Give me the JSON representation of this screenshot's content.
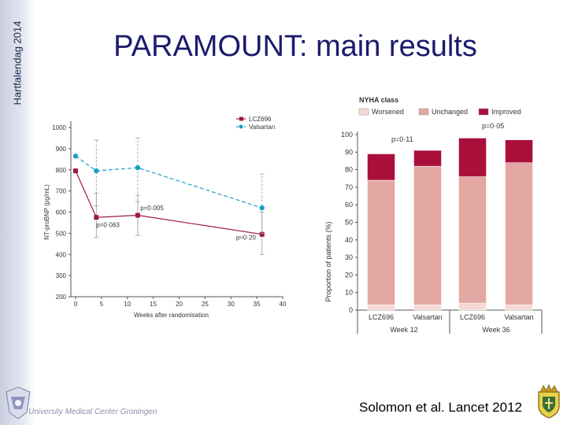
{
  "sidebar": {
    "label": "Hartfalendag 2014"
  },
  "slide": {
    "title": "PARAMOUNT: main results",
    "citation": "Solomon et al. Lancet 2012",
    "institution": "University Medical Center Groningen"
  },
  "colors": {
    "lcz696": "#9b1b3a",
    "valsartan": "#1aa0c6",
    "worsened": "#f5d9d4",
    "unchanged": "#e3a8a3",
    "improved": "#a90f3a",
    "title": "#1b1b6e"
  },
  "chart_data": [
    {
      "type": "line",
      "title": "",
      "xlabel": "Weeks after randomisation",
      "ylabel": "NT-proBNP (pg/mL)",
      "x_ticks": [
        0,
        5,
        10,
        15,
        20,
        25,
        30,
        35,
        40
      ],
      "y_ticks": [
        200,
        300,
        400,
        500,
        600,
        700,
        800,
        900,
        1000
      ],
      "xlim": [
        0,
        40
      ],
      "ylim": [
        200,
        1000
      ],
      "legend_position": "top-right",
      "series": [
        {
          "name": "LCZ696",
          "x": [
            0,
            4,
            12,
            36
          ],
          "y": [
            795,
            575,
            585,
            495
          ],
          "err_low": [
            null,
            480,
            490,
            400
          ],
          "err_high": [
            null,
            690,
            680,
            600
          ],
          "style": "solid"
        },
        {
          "name": "Valsartan",
          "x": [
            0,
            4,
            12,
            36
          ],
          "y": [
            865,
            795,
            810,
            620
          ],
          "err_low": [
            null,
            630,
            650,
            500
          ],
          "err_high": [
            null,
            940,
            950,
            780
          ],
          "style": "dashed"
        }
      ],
      "annotations": [
        {
          "text": "p=0·063",
          "x": 4,
          "y": 530
        },
        {
          "text": "p=0·005",
          "x": 12.5,
          "y": 610
        },
        {
          "text": "p=0·20",
          "x": 31,
          "y": 470
        }
      ]
    },
    {
      "type": "bar",
      "stacked": true,
      "title": "NYHA class",
      "xlabel": "",
      "ylabel": "Proportion of patients (%)",
      "y_ticks": [
        0,
        10,
        20,
        30,
        40,
        50,
        60,
        70,
        80,
        90,
        100
      ],
      "ylim": [
        0,
        100
      ],
      "legend_position": "top",
      "categories": [
        "LCZ696",
        "Valsartan",
        "LCZ696",
        "Valsartan"
      ],
      "groups": [
        {
          "label": "Week 12",
          "categories": [
            0,
            1
          ],
          "p_value": "p=0·11"
        },
        {
          "label": "Week 36",
          "categories": [
            2,
            3
          ],
          "p_value": "p=0·05"
        }
      ],
      "series": [
        {
          "name": "Worsened",
          "values": [
            3,
            3,
            4,
            3
          ]
        },
        {
          "name": "Unchanged",
          "values": [
            71,
            79,
            72,
            81
          ]
        },
        {
          "name": "Improved",
          "values": [
            15,
            9,
            22,
            13
          ]
        }
      ]
    }
  ]
}
